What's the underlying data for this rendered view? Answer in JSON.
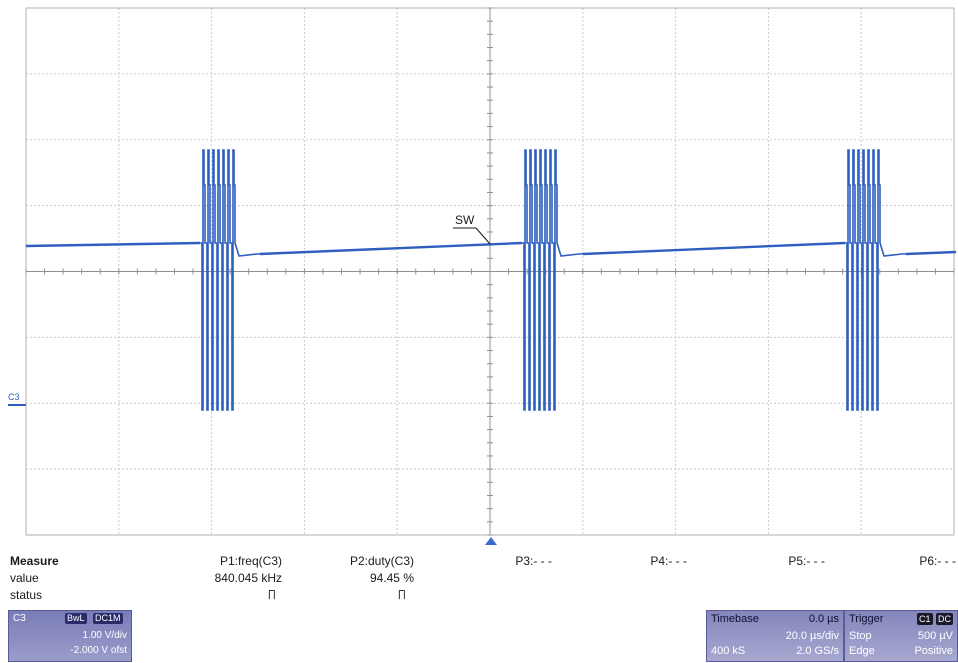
{
  "trace": {
    "label": "SW",
    "channel_marker": "C3",
    "color": "#2e5fc0",
    "grid_divisions": {
      "horizontal": 10,
      "vertical": 8
    }
  },
  "measure": {
    "title": "Measure",
    "rows": [
      "value",
      "status"
    ],
    "params": [
      {
        "name": "P1:freq(C3)",
        "value": "840.045 kHz",
        "status": "∏"
      },
      {
        "name": "P2:duty(C3)",
        "value": "94.45 %",
        "status": "∏"
      },
      {
        "name": "P3:- - -",
        "value": "",
        "status": ""
      },
      {
        "name": "P4:- - -",
        "value": "",
        "status": ""
      },
      {
        "name": "P5:- - -",
        "value": "",
        "status": ""
      },
      {
        "name": "P6:- - -",
        "value": "",
        "status": ""
      }
    ]
  },
  "channel": {
    "name": "C3",
    "bwl": "BwL",
    "coupling": "DC1M",
    "vdiv": "1.00 V/div",
    "offset": "-2.000 V ofst"
  },
  "timebase": {
    "title": "Timebase",
    "delay": "0.0 µs",
    "tdiv": "20.0 µs/div",
    "samples": "400 kS",
    "rate": "2.0 GS/s"
  },
  "trigger": {
    "title": "Trigger",
    "source": "C1",
    "coupling": "DC",
    "mode": "Stop",
    "level": "500 µV",
    "type": "Edge",
    "slope": "Positive"
  }
}
